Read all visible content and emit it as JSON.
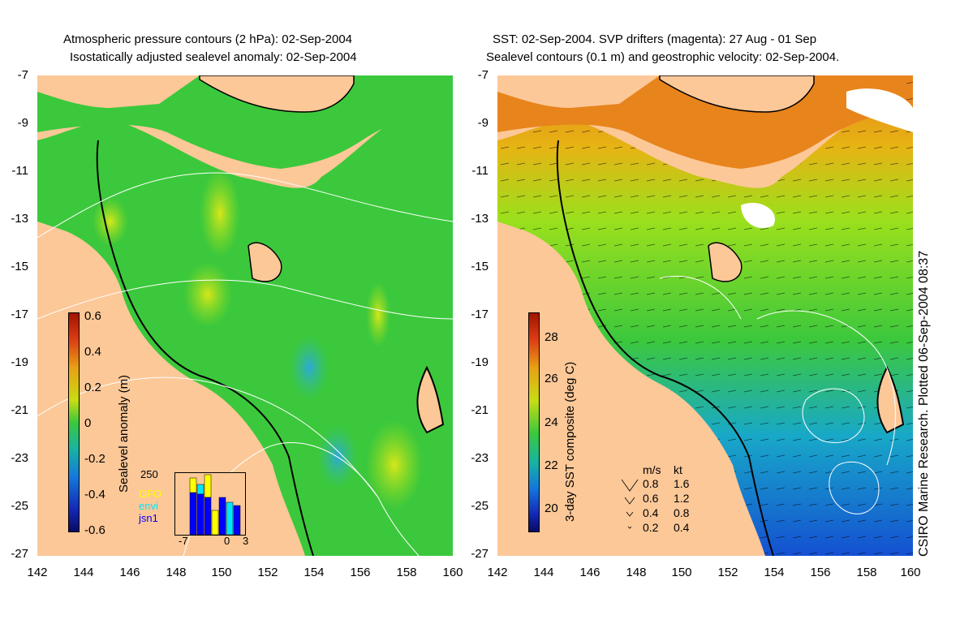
{
  "left_panel": {
    "title_line1": "Atmospheric pressure contours (2 hPa): 02-Sep-2004",
    "title_line2": "Isostatically adjusted sealevel anomaly: 02-Sep-2004",
    "colorbar": {
      "label": "Sealevel anomaly (m)",
      "ticks": [
        "0.6",
        "0.4",
        "0.2",
        "0",
        "-0.2",
        "-0.4",
        "-0.6"
      ]
    },
    "inset": {
      "ymax_label": "250",
      "x_labels": [
        "-7",
        "0",
        "3"
      ],
      "legend": [
        {
          "name": "GFO",
          "color": "#ffff00"
        },
        {
          "name": "envi",
          "color": "#00e5ff"
        },
        {
          "name": "jsn1",
          "color": "#0000ff"
        }
      ]
    }
  },
  "right_panel": {
    "title_line1": "SST: 02-Sep-2004. SVP drifters (magenta): 27 Aug - 01 Sep",
    "title_line2": "Sealevel contours (0.1 m) and geostrophic velocity: 02-Sep-2004.",
    "colorbar": {
      "label": "3-day SST composite (deg C)",
      "ticks": [
        "28",
        "26",
        "24",
        "22",
        "20"
      ]
    },
    "speed_legend": {
      "header_ms": "m/s",
      "header_kt": "kt",
      "rows": [
        {
          "ms": "0.8",
          "kt": "1.6"
        },
        {
          "ms": "0.6",
          "kt": "1.2"
        },
        {
          "ms": "0.4",
          "kt": "0.8"
        },
        {
          "ms": "0.2",
          "kt": "0.4"
        }
      ]
    }
  },
  "axes": {
    "y_labels": [
      "-7",
      "-9",
      "-11",
      "-13",
      "-15",
      "-17",
      "-19",
      "-21",
      "-23",
      "-25",
      "-27"
    ],
    "x_labels": [
      "142",
      "144",
      "146",
      "148",
      "150",
      "152",
      "154",
      "156",
      "158",
      "160"
    ]
  },
  "side_credit": "CSIRO Marine Research. Plotted 06-Sep-2004 08:37",
  "colors": {
    "land": "#fcc898",
    "sea_green": "#3cc83c",
    "sst_orange": "#e8841c",
    "sst_blue": "#1450d2"
  }
}
